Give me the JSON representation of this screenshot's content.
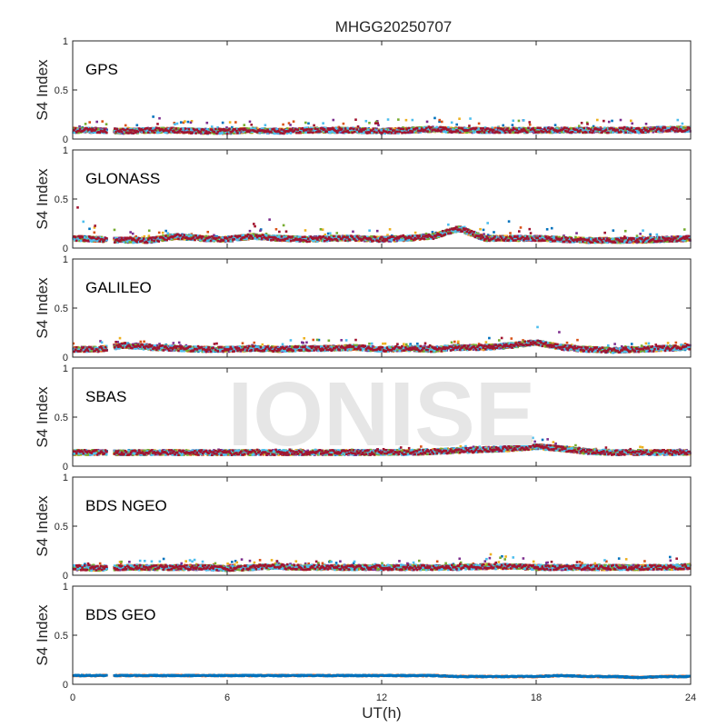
{
  "title": "MHGG20250707",
  "watermark": "IONISE",
  "colors": {
    "series": [
      "#0072BD",
      "#D95319",
      "#EDB120",
      "#7E2F8E",
      "#77AC30",
      "#4DBEEE",
      "#A2142F"
    ],
    "watermark": "#e6e6e6",
    "axes": "#262626"
  },
  "chart_data": [
    {
      "type": "scatter",
      "label": "GPS",
      "ylabel": "S4 Index",
      "xlim": [
        0,
        24
      ],
      "ylim": [
        0,
        1
      ],
      "yticks": [
        "0",
        "0.5",
        "1"
      ],
      "x": [
        0,
        1,
        2,
        3,
        4,
        5,
        6,
        7,
        8,
        9,
        10,
        11,
        12,
        13,
        14,
        15,
        16,
        17,
        18,
        19,
        20,
        21,
        22,
        23,
        24
      ],
      "baseline": [
        0.09,
        0.09,
        0.08,
        0.09,
        0.09,
        0.08,
        0.08,
        0.09,
        0.08,
        0.09,
        0.09,
        0.09,
        0.08,
        0.09,
        0.1,
        0.09,
        0.09,
        0.09,
        0.09,
        0.09,
        0.09,
        0.09,
        0.09,
        0.1,
        0.1
      ],
      "peak": [
        0.2,
        0.2,
        0.18,
        0.25,
        0.2,
        0.18,
        0.17,
        0.2,
        0.2,
        0.22,
        0.2,
        0.2,
        0.2,
        0.22,
        0.3,
        0.22,
        0.22,
        0.2,
        0.2,
        0.2,
        0.2,
        0.22,
        0.2,
        0.2,
        0.2
      ]
    },
    {
      "type": "scatter",
      "label": "GLONASS",
      "ylabel": "S4 Index",
      "xlim": [
        0,
        24
      ],
      "ylim": [
        0,
        1
      ],
      "yticks": [
        "0",
        "0.5",
        "1"
      ],
      "x": [
        0,
        1,
        2,
        3,
        4,
        5,
        6,
        7,
        8,
        9,
        10,
        11,
        12,
        13,
        14,
        15,
        16,
        17,
        18,
        19,
        20,
        21,
        22,
        23,
        24
      ],
      "baseline": [
        0.1,
        0.09,
        0.08,
        0.08,
        0.12,
        0.1,
        0.09,
        0.12,
        0.1,
        0.09,
        0.1,
        0.1,
        0.09,
        0.1,
        0.12,
        0.2,
        0.1,
        0.1,
        0.1,
        0.09,
        0.08,
        0.08,
        0.08,
        0.09,
        0.1
      ],
      "peak": [
        0.5,
        0.2,
        0.18,
        0.18,
        0.2,
        0.2,
        0.2,
        0.25,
        0.32,
        0.2,
        0.2,
        0.2,
        0.2,
        0.2,
        0.2,
        0.28,
        0.25,
        0.3,
        0.22,
        0.2,
        0.18,
        0.2,
        0.2,
        0.2,
        0.22
      ]
    },
    {
      "type": "scatter",
      "label": "GALILEO",
      "ylabel": "S4 Index",
      "xlim": [
        0,
        24
      ],
      "ylim": [
        0,
        1
      ],
      "yticks": [
        "0",
        "0.5",
        "1"
      ],
      "x": [
        0,
        1,
        2,
        3,
        4,
        5,
        6,
        7,
        8,
        9,
        10,
        11,
        12,
        13,
        14,
        15,
        16,
        17,
        18,
        19,
        20,
        21,
        22,
        23,
        24
      ],
      "baseline": [
        0.08,
        0.08,
        0.12,
        0.1,
        0.09,
        0.08,
        0.08,
        0.09,
        0.08,
        0.09,
        0.09,
        0.1,
        0.08,
        0.09,
        0.08,
        0.1,
        0.1,
        0.12,
        0.15,
        0.1,
        0.08,
        0.07,
        0.08,
        0.09,
        0.1
      ],
      "peak": [
        0.15,
        0.18,
        0.22,
        0.15,
        0.15,
        0.15,
        0.15,
        0.15,
        0.15,
        0.2,
        0.18,
        0.18,
        0.15,
        0.15,
        0.15,
        0.18,
        0.2,
        0.2,
        0.35,
        0.36,
        0.15,
        0.15,
        0.15,
        0.15,
        0.15
      ]
    },
    {
      "type": "scatter",
      "label": "SBAS",
      "ylabel": "S4 Index",
      "xlim": [
        0,
        24
      ],
      "ylim": [
        0,
        1
      ],
      "yticks": [
        "0",
        "0.5",
        "1"
      ],
      "x": [
        0,
        1,
        2,
        3,
        4,
        5,
        6,
        7,
        8,
        9,
        10,
        11,
        12,
        13,
        14,
        15,
        16,
        17,
        18,
        19,
        20,
        21,
        22,
        23,
        24
      ],
      "baseline": [
        0.14,
        0.14,
        0.14,
        0.14,
        0.14,
        0.14,
        0.14,
        0.14,
        0.14,
        0.14,
        0.14,
        0.14,
        0.14,
        0.14,
        0.15,
        0.16,
        0.17,
        0.18,
        0.2,
        0.18,
        0.15,
        0.14,
        0.14,
        0.14,
        0.14
      ],
      "peak": [
        0.17,
        0.17,
        0.17,
        0.17,
        0.17,
        0.17,
        0.17,
        0.17,
        0.17,
        0.17,
        0.17,
        0.17,
        0.18,
        0.2,
        0.22,
        0.22,
        0.24,
        0.26,
        0.3,
        0.3,
        0.2,
        0.2,
        0.22,
        0.2,
        0.18
      ]
    },
    {
      "type": "scatter",
      "label": "BDS NGEO",
      "ylabel": "S4 Index",
      "xlim": [
        0,
        24
      ],
      "ylim": [
        0,
        1
      ],
      "yticks": [
        "0",
        "0.5",
        "1"
      ],
      "x": [
        0,
        1,
        2,
        3,
        4,
        5,
        6,
        7,
        8,
        9,
        10,
        11,
        12,
        13,
        14,
        15,
        16,
        17,
        18,
        19,
        20,
        21,
        22,
        23,
        24
      ],
      "baseline": [
        0.08,
        0.07,
        0.08,
        0.08,
        0.08,
        0.08,
        0.07,
        0.08,
        0.09,
        0.08,
        0.08,
        0.08,
        0.08,
        0.08,
        0.08,
        0.08,
        0.09,
        0.09,
        0.08,
        0.08,
        0.08,
        0.08,
        0.08,
        0.08,
        0.09
      ],
      "peak": [
        0.15,
        0.12,
        0.15,
        0.18,
        0.2,
        0.15,
        0.15,
        0.18,
        0.18,
        0.15,
        0.15,
        0.15,
        0.15,
        0.15,
        0.15,
        0.18,
        0.25,
        0.2,
        0.15,
        0.15,
        0.15,
        0.18,
        0.15,
        0.2,
        0.3
      ]
    },
    {
      "type": "scatter",
      "label": "BDS GEO",
      "ylabel": "S4 Index",
      "xlabel": "UT(h)",
      "xticks": [
        "0",
        "6",
        "12",
        "18",
        "24"
      ],
      "xlim": [
        0,
        24
      ],
      "ylim": [
        0,
        1
      ],
      "yticks": [
        "0",
        "0.5",
        "1"
      ],
      "x": [
        0,
        1,
        2,
        3,
        4,
        5,
        6,
        7,
        8,
        9,
        10,
        11,
        12,
        13,
        14,
        15,
        16,
        17,
        18,
        19,
        20,
        21,
        22,
        23,
        24
      ],
      "baseline": [
        0.09,
        0.09,
        0.09,
        0.09,
        0.09,
        0.09,
        0.09,
        0.09,
        0.09,
        0.09,
        0.09,
        0.09,
        0.09,
        0.09,
        0.09,
        0.08,
        0.08,
        0.08,
        0.08,
        0.09,
        0.08,
        0.08,
        0.07,
        0.08,
        0.08
      ],
      "peak": [
        0.1,
        0.1,
        0.1,
        0.1,
        0.1,
        0.1,
        0.1,
        0.1,
        0.1,
        0.1,
        0.1,
        0.1,
        0.1,
        0.1,
        0.1,
        0.09,
        0.09,
        0.09,
        0.09,
        0.1,
        0.09,
        0.09,
        0.09,
        0.09,
        0.09
      ]
    }
  ]
}
